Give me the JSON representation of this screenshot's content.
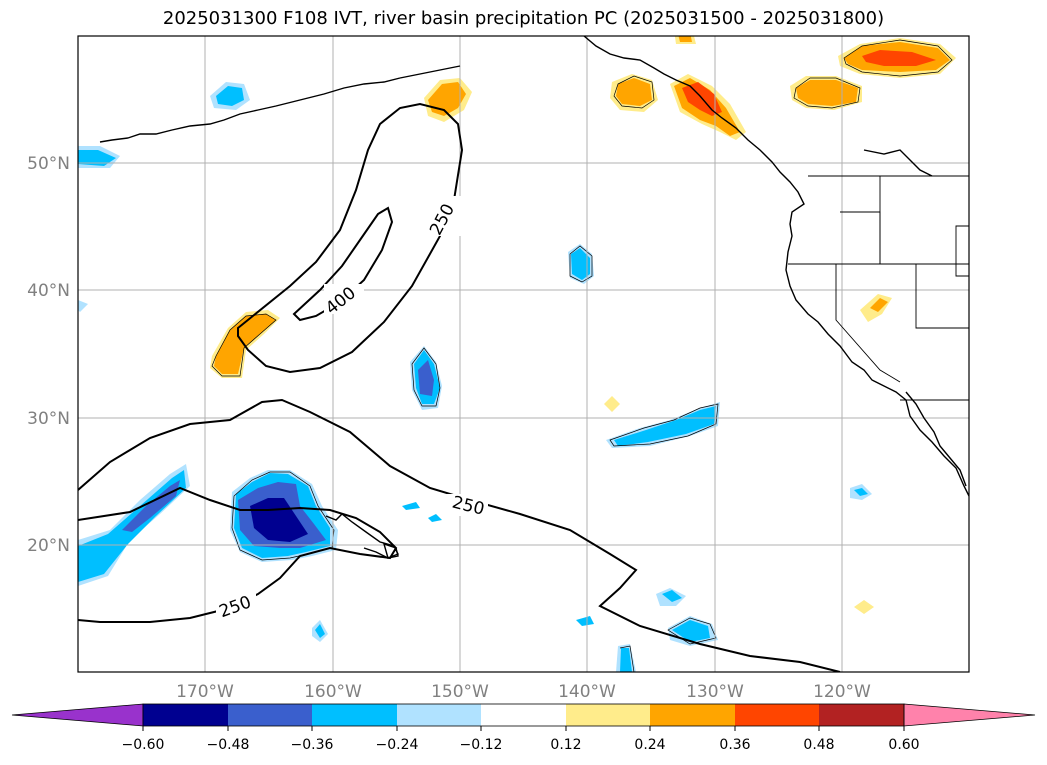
{
  "title": "2025031300 F108 IVT, river basin precipitation PC (2025031500 - 2025031800)",
  "lat_labels": [
    "50°N",
    "40°N",
    "30°N",
    "20°N"
  ],
  "lon_labels": [
    "170°W",
    "160°W",
    "150°W",
    "140°W",
    "130°W",
    "120°W"
  ],
  "contour_labels": [
    "250",
    "400",
    "250",
    "250"
  ],
  "colorbar": {
    "ticks": [
      "−0.60",
      "−0.48",
      "−0.36",
      "−0.24",
      "−0.12",
      "0.12",
      "0.24",
      "0.36",
      "0.48",
      "0.60"
    ],
    "colors": [
      "#9932cc",
      "#000090",
      "#3a5fcd",
      "#00bfff",
      "#b0e2ff",
      "#ffffff",
      "#ffec8b",
      "#ffa500",
      "#ff4500",
      "#b22222",
      "#ff82ab"
    ]
  },
  "colors": {
    "grid": "#b0b0b0",
    "coast": "#000000",
    "label_gray": "#808080"
  }
}
